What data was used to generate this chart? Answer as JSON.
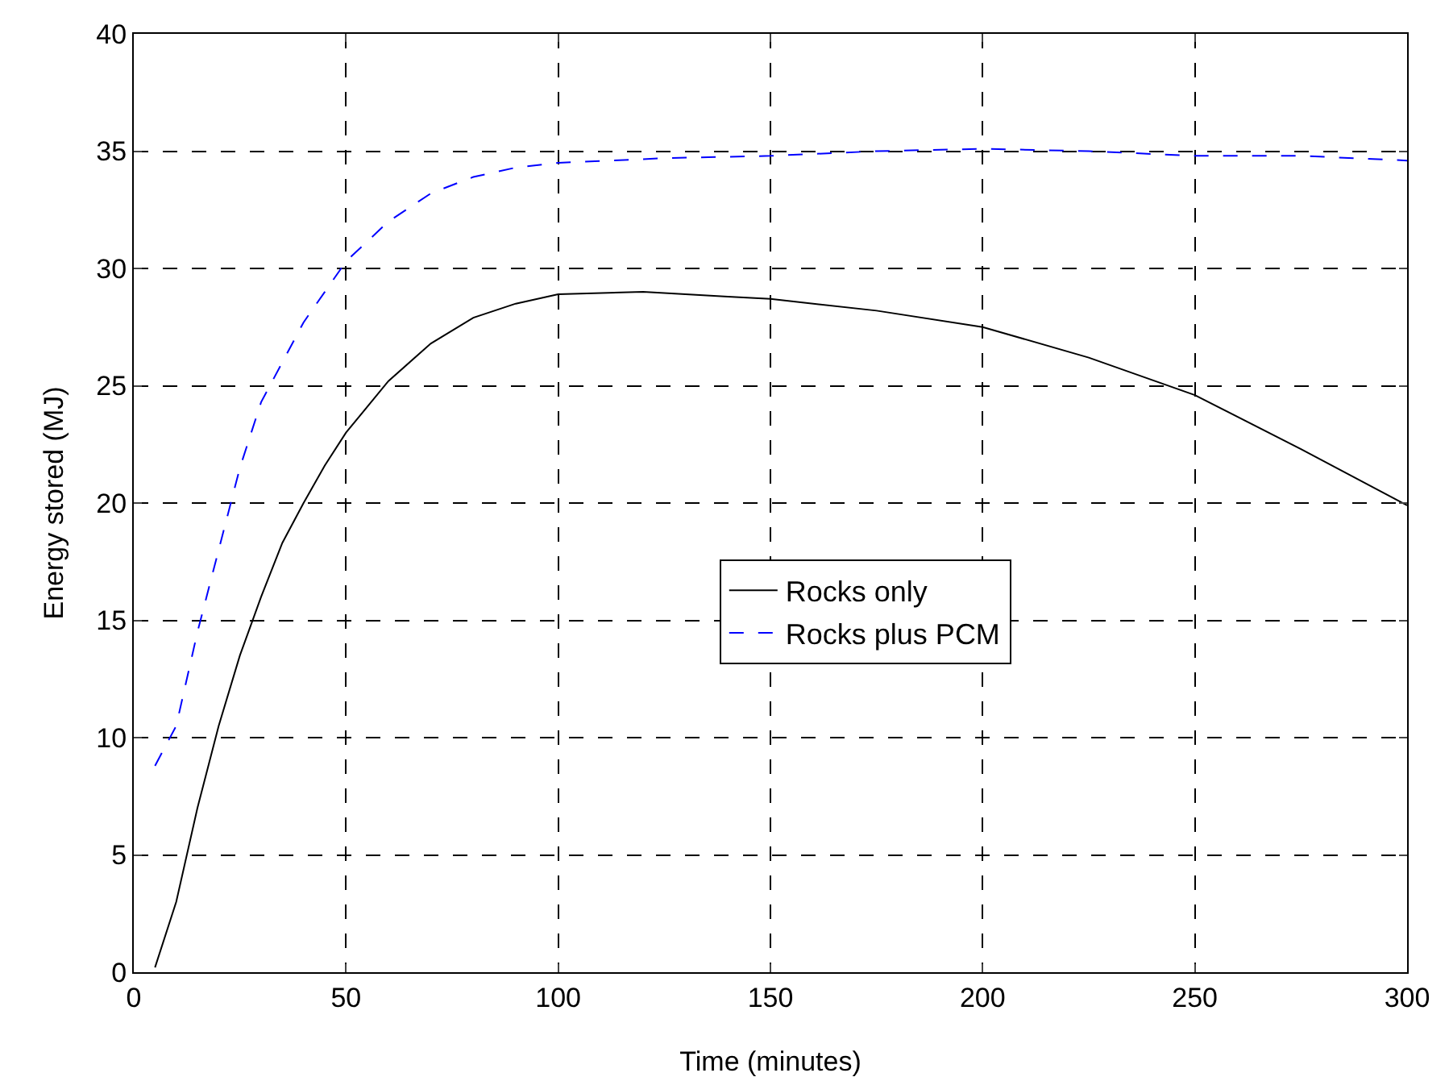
{
  "chart_data": {
    "type": "line",
    "xlabel": "Time (minutes)",
    "ylabel": "Energy stored (MJ)",
    "xlim": [
      0,
      300
    ],
    "xticks": [
      0,
      50,
      100,
      150,
      200,
      250,
      300
    ],
    "ylim": [
      0,
      40
    ],
    "yticks": [
      0,
      5,
      10,
      15,
      20,
      25,
      30,
      35,
      40
    ],
    "grid": true,
    "legend": "right",
    "marker": "none",
    "series": [
      {
        "name": "Rocks only",
        "color": "#000000",
        "line_style": "solid",
        "x": [
          5,
          10,
          15,
          20,
          25,
          30,
          35,
          40,
          45,
          50,
          60,
          70,
          80,
          90,
          100,
          120,
          140,
          150,
          175,
          200,
          225,
          250,
          275,
          300
        ],
        "values": [
          0.2,
          3,
          7,
          10.5,
          13.5,
          16,
          18.3,
          20,
          21.6,
          23,
          25.2,
          26.8,
          27.9,
          28.5,
          28.9,
          29,
          28.8,
          28.7,
          28.2,
          27.5,
          26.2,
          24.6,
          22.3,
          19.9
        ]
      },
      {
        "name": "Rocks plus PCM",
        "color": "#0000ff",
        "line_style": "dashed",
        "x": [
          5,
          10,
          15,
          20,
          25,
          30,
          35,
          40,
          45,
          50,
          60,
          70,
          80,
          90,
          100,
          125,
          150,
          175,
          200,
          225,
          250,
          275,
          300
        ],
        "values": [
          8.8,
          10.5,
          14.5,
          18,
          21.5,
          24.3,
          26,
          27.7,
          29,
          30.3,
          32,
          33.2,
          33.9,
          34.3,
          34.5,
          34.7,
          34.8,
          35,
          35.1,
          35,
          34.8,
          34.8,
          34.6
        ]
      }
    ]
  }
}
